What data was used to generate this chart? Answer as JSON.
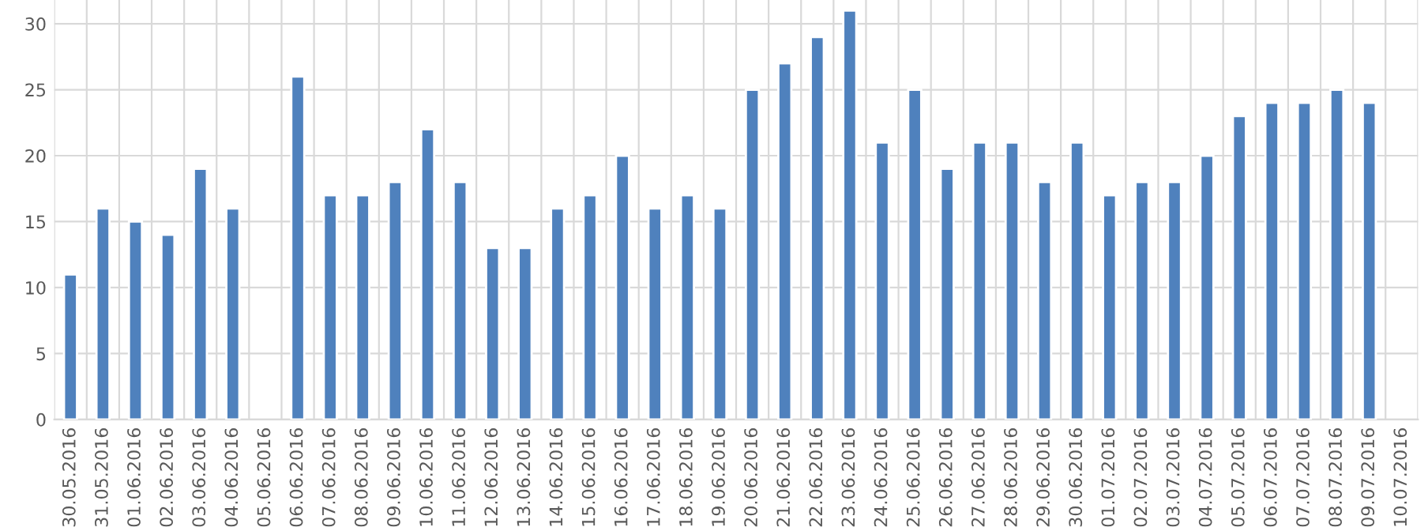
{
  "chart_data": {
    "type": "bar",
    "categories": [
      "30.05.2016",
      "31.05.2016",
      "01.06.2016",
      "02.06.2016",
      "03.06.2016",
      "04.06.2016",
      "05.06.2016",
      "06.06.2016",
      "07.06.2016",
      "08.06.2016",
      "09.06.2016",
      "10.06.2016",
      "11.06.2016",
      "12.06.2016",
      "13.06.2016",
      "14.06.2016",
      "15.06.2016",
      "16.06.2016",
      "17.06.2016",
      "18.06.2016",
      "19.06.2016",
      "20.06.2016",
      "21.06.2016",
      "22.06.2016",
      "23.06.2016",
      "24.06.2016",
      "25.06.2016",
      "26.06.2016",
      "27.06.2016",
      "28.06.2016",
      "29.06.2016",
      "30.06.2016",
      "01.07.2016",
      "02.07.2016",
      "03.07.2016",
      "04.07.2016",
      "05.07.2016",
      "06.07.2016",
      "07.07.2016",
      "08.07.2016",
      "09.07.2016",
      "10.07.2016"
    ],
    "values": [
      11,
      16,
      15,
      14,
      19,
      16,
      null,
      26,
      17,
      17,
      18,
      22,
      18,
      13,
      13,
      16,
      17,
      20,
      16,
      17,
      16,
      25,
      27,
      29,
      31,
      21,
      25,
      19,
      21,
      21,
      18,
      21,
      17,
      18,
      18,
      20,
      23,
      24,
      24,
      25,
      24,
      null
    ],
    "color": "#4f81bd",
    "ylim": [
      0,
      31.8
    ],
    "yticks": [
      0,
      5,
      10,
      15,
      20,
      25,
      30
    ],
    "grid": true
  }
}
